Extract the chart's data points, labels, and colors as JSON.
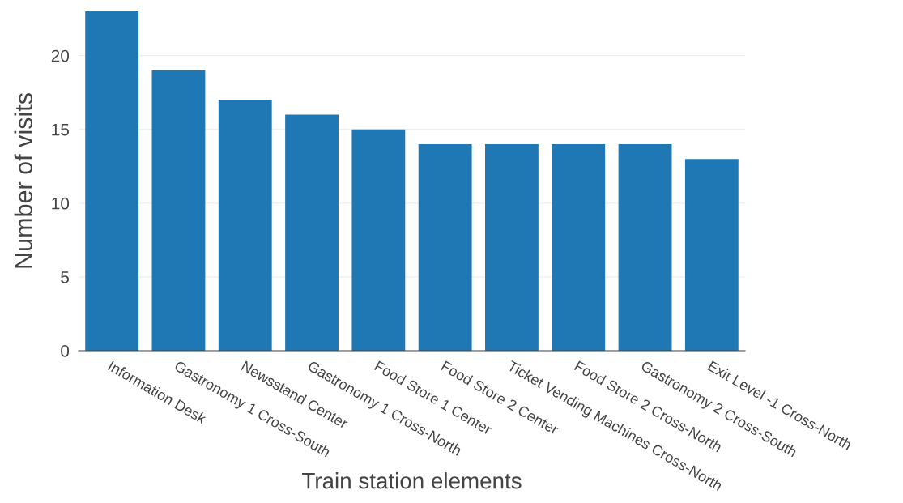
{
  "chart_data": {
    "type": "bar",
    "xlabel": "Train station elements",
    "ylabel": "Number of visits",
    "categories": [
      "Information Desk",
      "Gastronomy 1 Cross-South",
      "Newsstand Center",
      "Gastronomy 1 Cross-North",
      "Food Store 1 Center",
      "Food Store 2 Center",
      "Ticket Vending Machines Cross-North",
      "Food Store 2 Cross-North",
      "Gastronomy 2 Cross-South",
      "Exit Level -1 Cross-North"
    ],
    "values": [
      23,
      19,
      17,
      16,
      15,
      14,
      14,
      14,
      14,
      13
    ],
    "color": "#1f77b4",
    "ylim": [
      0,
      23
    ],
    "yticks": [
      0,
      5,
      10,
      15,
      20
    ],
    "grid": "y",
    "legend": false
  }
}
